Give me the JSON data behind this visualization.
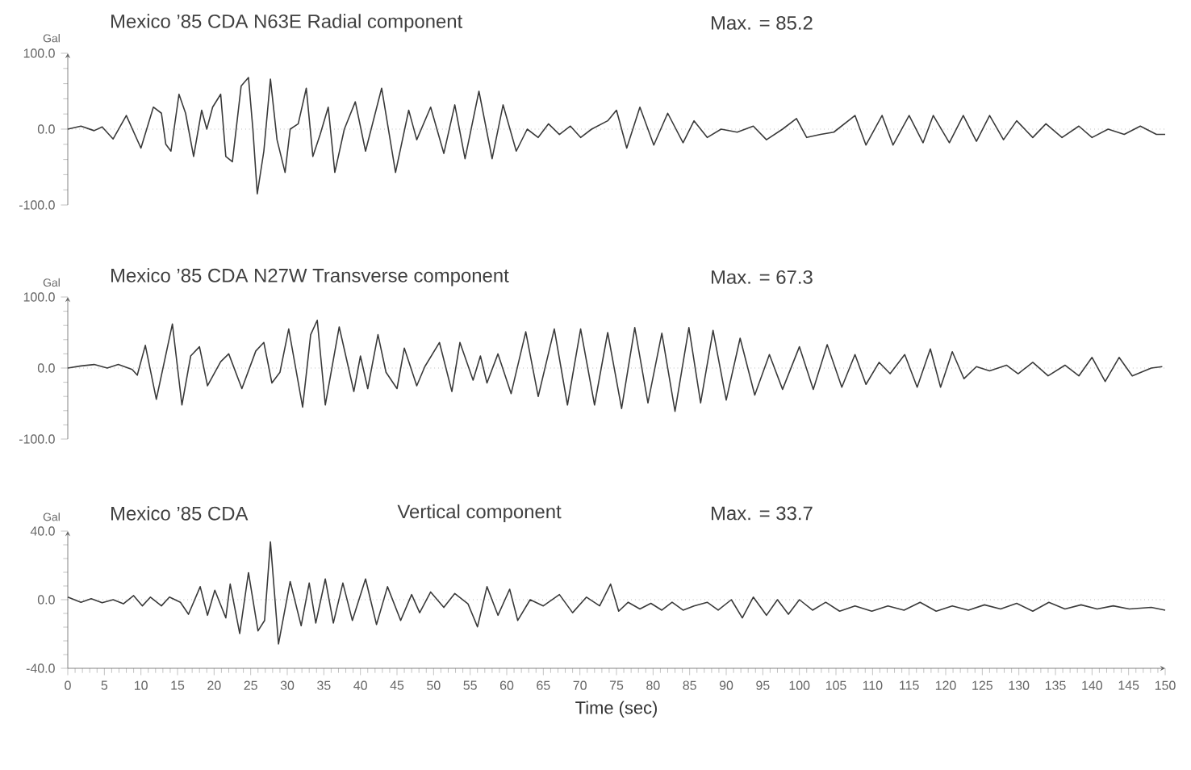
{
  "chart_data": [
    {
      "type": "line",
      "title": "Mexico ’85 CDA N63E Radial component",
      "annotations": [
        "Max. = 85.2"
      ],
      "ylabel": "Gal",
      "color": "#3a3a3a",
      "tick_labels": "y",
      "xlim": [
        0,
        150
      ],
      "ylim": [
        -100,
        100
      ],
      "yticks": [
        {
          "value": -100,
          "label": "-100.0"
        },
        {
          "value": 0,
          "label": "0.0"
        },
        {
          "value": 100,
          "label": "100.0"
        }
      ],
      "ref_lines": [
        {
          "axis": "y",
          "value": 0,
          "line_style": "dotted",
          "color": "#999999"
        }
      ],
      "x": [
        0,
        1.8,
        3.6,
        4.7,
        6.2,
        8.0,
        10.0,
        11.7,
        12.8,
        13.4,
        14.1,
        15.2,
        16.1,
        17.2,
        18.3,
        19.0,
        19.8,
        20.9,
        21.6,
        22.5,
        23.7,
        24.7,
        25.3,
        25.9,
        26.8,
        27.7,
        28.6,
        29.7,
        30.4,
        31.5,
        32.6,
        33.5,
        34.5,
        35.6,
        36.5,
        37.8,
        39.3,
        40.7,
        42.9,
        44.8,
        46.6,
        47.7,
        49.6,
        51.4,
        52.9,
        54.3,
        56.2,
        58.0,
        59.5,
        61.3,
        62.8,
        64.3,
        65.7,
        67.2,
        68.7,
        70.1,
        71.6,
        73.8,
        75.0,
        76.4,
        78.2,
        80.1,
        82.0,
        84.1,
        85.6,
        87.4,
        89.3,
        91.5,
        93.7,
        95.5,
        97.7,
        99.6,
        101.0,
        102.9,
        104.7,
        107.6,
        109.1,
        111.3,
        112.8,
        115.0,
        116.9,
        118.3,
        120.5,
        122.4,
        124.2,
        126.0,
        127.9,
        129.7,
        131.9,
        133.7,
        135.9,
        138.2,
        140.0,
        142.2,
        144.4,
        146.6,
        148.8,
        150
      ],
      "values": [
        0,
        4,
        -2,
        3,
        -13,
        18,
        -25,
        29,
        21,
        -20,
        -29,
        46,
        21,
        -36,
        25,
        0,
        29,
        46,
        -36,
        -43,
        57,
        68,
        0,
        -85.2,
        -29,
        66,
        -14,
        -57,
        0,
        7,
        54,
        -36,
        -7,
        29,
        -57,
        0,
        36,
        -29,
        54,
        -57,
        25,
        -14,
        29,
        -32,
        32,
        -39,
        50,
        -39,
        32,
        -29,
        0,
        -11,
        7,
        -7,
        4,
        -11,
        0,
        11,
        25,
        -25,
        29,
        -21,
        21,
        -18,
        11,
        -11,
        0,
        -4,
        4,
        -14,
        0,
        14,
        -11,
        -7,
        -4,
        18,
        -21,
        18,
        -21,
        18,
        -18,
        18,
        -18,
        18,
        -16,
        18,
        -14,
        11,
        -11,
        7,
        -11,
        4,
        -11,
        0,
        -7,
        4,
        -7,
        -7
      ]
    },
    {
      "type": "line",
      "title": "Mexico ’85 CDA N27W Transverse component",
      "annotations": [
        "Max. = 67.3"
      ],
      "ylabel": "Gal",
      "color": "#3a3a3a",
      "tick_labels": "y",
      "xlim": [
        0,
        150
      ],
      "ylim": [
        -100,
        100
      ],
      "yticks": [
        {
          "value": -100,
          "label": "-100.0"
        },
        {
          "value": 0,
          "label": "0.0"
        },
        {
          "value": 100,
          "label": "100.0"
        }
      ],
      "ref_lines": [
        {
          "axis": "y",
          "value": 0,
          "line_style": "dotted",
          "color": "#999999"
        }
      ],
      "x": [
        0,
        1.8,
        3.6,
        5.4,
        6.9,
        8.8,
        9.5,
        10.6,
        12.1,
        14.3,
        15.6,
        16.8,
        18.0,
        19.1,
        20.9,
        22.0,
        23.8,
        25.7,
        26.8,
        27.9,
        29.0,
        30.2,
        32.1,
        33.2,
        34.1,
        35.2,
        37.1,
        39.1,
        40.0,
        41.0,
        42.4,
        43.5,
        45.0,
        46.0,
        47.7,
        48.8,
        50.8,
        52.5,
        53.6,
        55.4,
        56.4,
        57.3,
        58.8,
        60.6,
        62.6,
        64.3,
        66.5,
        68.3,
        70.1,
        72.0,
        73.8,
        75.7,
        77.5,
        79.3,
        81.2,
        83.0,
        84.9,
        86.5,
        88.2,
        90.0,
        91.9,
        93.9,
        95.9,
        97.7,
        100.0,
        101.9,
        103.8,
        105.8,
        107.6,
        109.1,
        110.9,
        112.4,
        114.4,
        116.1,
        117.9,
        119.3,
        120.9,
        122.5,
        124.2,
        126.0,
        128.3,
        129.9,
        131.9,
        134.0,
        136.3,
        138.2,
        140.0,
        141.8,
        143.7,
        145.5,
        148.1,
        149.6
      ],
      "values": [
        0,
        3,
        5,
        0,
        5,
        -2,
        -10,
        32,
        -44,
        62,
        -52,
        17,
        30,
        -25,
        9,
        20,
        -29,
        24,
        36,
        -21,
        -6,
        55,
        -55,
        47,
        67.3,
        -52,
        58,
        -33,
        17,
        -29,
        47,
        -6,
        -29,
        28,
        -25,
        2,
        36,
        -33,
        36,
        -17,
        17,
        -21,
        20,
        -36,
        51,
        -40,
        55,
        -52,
        55,
        -52,
        50,
        -57,
        57,
        -49,
        49,
        -61,
        57,
        -49,
        53,
        -45,
        42,
        -38,
        19,
        -30,
        30,
        -30,
        33,
        -27,
        19,
        -23,
        8,
        -8,
        19,
        -27,
        27,
        -27,
        23,
        -15,
        2,
        -4,
        4,
        -8,
        8,
        -11,
        4,
        -11,
        15,
        -19,
        15,
        -11,
        0,
        2
      ]
    },
    {
      "type": "line",
      "title": "Mexico ’85 CDA",
      "subtitle": "Vertical component",
      "annotations": [
        "Max. = 33.7"
      ],
      "ylabel": "Gal",
      "xlabel": "Time (sec)",
      "color": "#3a3a3a",
      "xlim": [
        0,
        150
      ],
      "ylim": [
        -40,
        40
      ],
      "xticks": [
        0,
        5,
        10,
        15,
        20,
        25,
        30,
        35,
        40,
        45,
        50,
        55,
        60,
        65,
        70,
        75,
        80,
        85,
        90,
        95,
        100,
        105,
        110,
        115,
        120,
        125,
        130,
        135,
        140,
        145,
        150
      ],
      "yticks": [
        {
          "value": -40,
          "label": "-40.0"
        },
        {
          "value": 0,
          "label": "0.0"
        },
        {
          "value": 40,
          "label": "40.0"
        }
      ],
      "ref_lines": [
        {
          "axis": "y",
          "value": 0,
          "line_style": "dotted",
          "color": "#999999"
        }
      ],
      "x": [
        0,
        1.8,
        3.2,
        4.7,
        6.2,
        7.6,
        9.0,
        10.2,
        11.3,
        12.8,
        13.9,
        15.4,
        16.5,
        18.1,
        19.1,
        20.1,
        21.6,
        22.2,
        23.5,
        24.7,
        26.0,
        26.9,
        27.7,
        28.8,
        30.4,
        31.9,
        33.0,
        33.9,
        35.2,
        36.3,
        37.6,
        38.9,
        40.7,
        42.2,
        43.7,
        45.5,
        47.0,
        48.1,
        49.6,
        51.4,
        52.9,
        54.7,
        56.0,
        57.3,
        58.8,
        60.4,
        61.5,
        63.2,
        65.0,
        67.2,
        69.0,
        70.9,
        72.7,
        74.2,
        75.3,
        76.6,
        78.2,
        79.7,
        81.2,
        82.6,
        84.1,
        85.6,
        87.4,
        88.9,
        90.7,
        92.2,
        93.7,
        95.5,
        97.0,
        98.5,
        100.0,
        101.8,
        103.6,
        105.5,
        107.6,
        109.9,
        112.1,
        114.3,
        116.5,
        118.7,
        120.9,
        123.1,
        125.3,
        127.5,
        129.7,
        131.9,
        134.1,
        136.3,
        138.5,
        140.7,
        142.9,
        145.1,
        148.1,
        150
      ],
      "values": [
        1.5,
        -1.5,
        0.6,
        -1.8,
        0,
        -2.4,
        2.4,
        -3.6,
        1.5,
        -3.6,
        1.5,
        -1.5,
        -8.5,
        7.6,
        -9.1,
        5.5,
        -10.6,
        9.1,
        -19.7,
        15.8,
        -18.2,
        -12.1,
        33.7,
        -25.8,
        10.6,
        -15.2,
        9.7,
        -13.6,
        12.1,
        -13.6,
        9.7,
        -12.1,
        12.1,
        -14.5,
        7.6,
        -12.1,
        3.0,
        -7.6,
        4.5,
        -4.5,
        3.6,
        -2.4,
        -15.8,
        7.6,
        -9.1,
        6.1,
        -12.1,
        0,
        -3.6,
        3.0,
        -7.6,
        1.5,
        -3.6,
        9.1,
        -6.7,
        -1.5,
        -5.4,
        -2.1,
        -6.1,
        -1.5,
        -6.1,
        -3.6,
        -1.5,
        -6.1,
        0,
        -10.6,
        1.5,
        -9.1,
        0,
        -8.5,
        0,
        -6.1,
        -1.5,
        -6.7,
        -3.6,
        -6.7,
        -3.6,
        -6.1,
        -1.5,
        -6.7,
        -3.6,
        -6.1,
        -3.0,
        -5.4,
        -2.1,
        -6.7,
        -1.5,
        -5.4,
        -3.0,
        -5.4,
        -3.6,
        -5.4,
        -4.5,
        -6.1
      ]
    }
  ]
}
